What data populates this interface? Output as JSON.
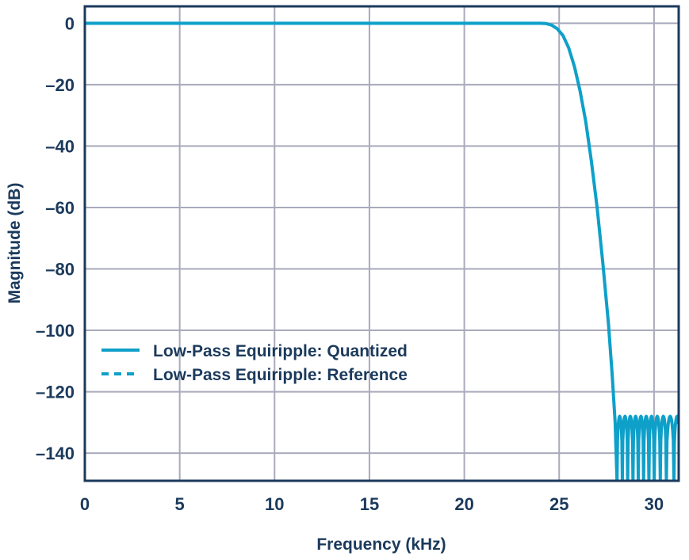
{
  "chart_data": {
    "type": "line",
    "title": "",
    "xlabel": "Frequency (kHz)",
    "ylabel": "Magnitude (dB)",
    "xlim": [
      0,
      31.3
    ],
    "ylim": [
      -149,
      5.5
    ],
    "x_ticks": [
      0,
      5,
      10,
      15,
      20,
      25,
      30
    ],
    "x_tick_labels": [
      "0",
      "5",
      "10",
      "15",
      "20",
      "25",
      "30"
    ],
    "y_ticks": [
      0,
      -20,
      -40,
      -60,
      -80,
      -100,
      -120,
      -140
    ],
    "y_tick_labels": [
      "0",
      "–20",
      "–40",
      "–60",
      "–80",
      "–100",
      "–120",
      "–140"
    ],
    "grid": true,
    "legend_position": "lower-left",
    "colors": {
      "series": "#0ea0c9",
      "frame": "#1b3a5c",
      "grid": "#a9aabb",
      "text": "#1b3a5c"
    },
    "series": [
      {
        "name": "Low-Pass Equiripple: Quantized",
        "style": "solid",
        "x": [
          0,
          24.0,
          24.3,
          24.6,
          24.9,
          25.2,
          25.5,
          25.8,
          26.1,
          26.4,
          26.7,
          27.0,
          27.3,
          27.6,
          27.8,
          27.95,
          28.05
        ],
        "y": [
          0,
          0,
          -0.1,
          -0.6,
          -1.8,
          -4,
          -8,
          -14,
          -22,
          -32,
          -45,
          -60,
          -78,
          -98,
          -115,
          -130,
          -149
        ],
        "stopband": {
          "nulls_khz": [
            28.05,
            28.33,
            28.61,
            28.89,
            29.17,
            29.45,
            29.73,
            30.01,
            30.33,
            30.65,
            31.05
          ],
          "ripple_peak_db": -128,
          "floor_db": -149
        }
      },
      {
        "name": "Low-Pass Equiripple: Reference",
        "style": "dashed",
        "x": [
          0,
          24.0,
          24.3,
          24.6,
          24.9,
          25.2,
          25.5,
          25.8,
          26.1,
          26.4,
          26.7,
          27.0,
          27.3,
          27.6,
          27.8,
          27.95,
          28.05
        ],
        "y": [
          0,
          0,
          -0.1,
          -0.6,
          -1.8,
          -4,
          -8,
          -14,
          -22,
          -32,
          -45,
          -60,
          -78,
          -98,
          -115,
          -130,
          -149
        ]
      }
    ]
  }
}
